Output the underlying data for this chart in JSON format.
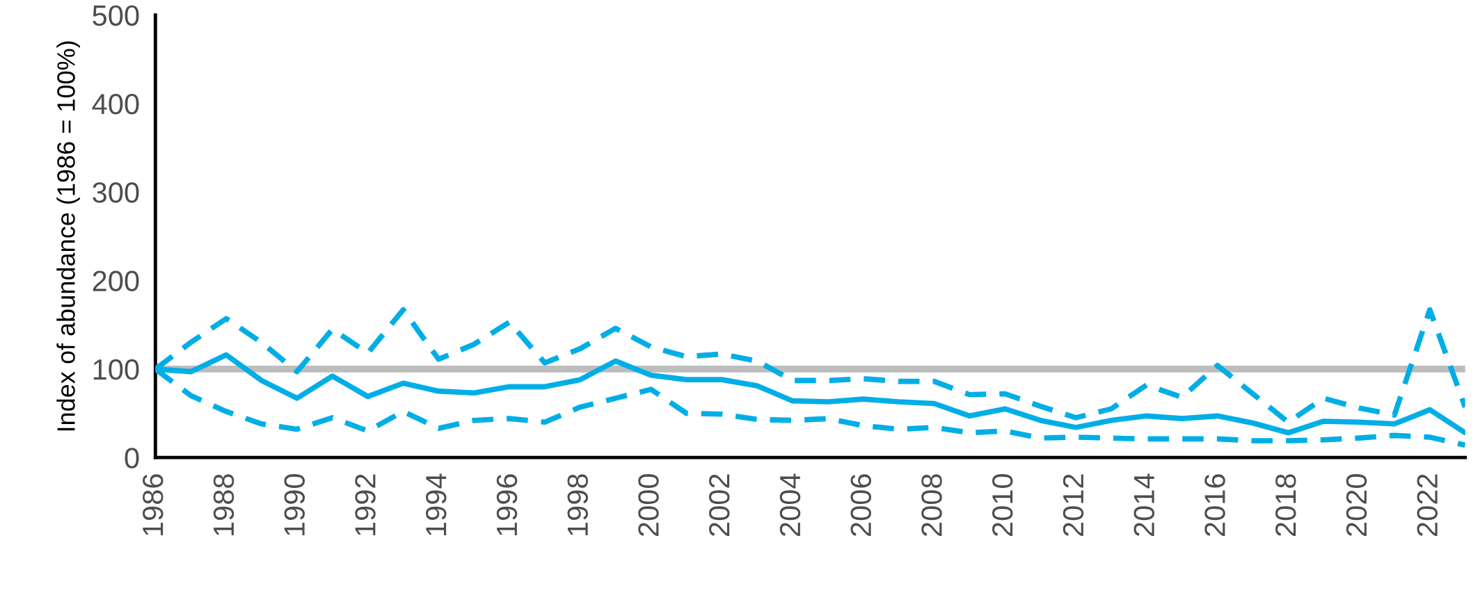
{
  "chart_data": {
    "type": "line",
    "ylabel": "Index of abundance (1986 = 100%)",
    "x": [
      1986,
      1987,
      1988,
      1989,
      1990,
      1991,
      1992,
      1993,
      1994,
      1995,
      1996,
      1997,
      1998,
      1999,
      2000,
      2001,
      2002,
      2003,
      2004,
      2005,
      2006,
      2007,
      2008,
      2009,
      2010,
      2011,
      2012,
      2013,
      2014,
      2015,
      2016,
      2017,
      2018,
      2019,
      2020,
      2021,
      2022,
      2023
    ],
    "series": [
      {
        "color": "#00aee6",
        "line_style": "solid",
        "values": [
          100,
          97,
          116,
          87,
          67,
          92,
          69,
          84,
          75,
          73,
          80,
          80,
          88,
          109,
          93,
          88,
          88,
          81,
          64,
          63,
          66,
          63,
          61,
          47,
          55,
          42,
          34,
          42,
          47,
          44,
          47,
          39,
          28,
          41,
          40,
          38,
          54,
          28
        ]
      },
      {
        "color": "#00aee6",
        "line_style": "dashed",
        "values": [
          100,
          130,
          157,
          130,
          97,
          145,
          118,
          167,
          111,
          128,
          153,
          107,
          123,
          146,
          125,
          114,
          117,
          109,
          87,
          87,
          89,
          86,
          86,
          71,
          72,
          58,
          45,
          55,
          82,
          68,
          104,
          72,
          40,
          67,
          56,
          48,
          167,
          57
        ]
      },
      {
        "color": "#00aee6",
        "line_style": "dashed",
        "values": [
          100,
          70,
          52,
          38,
          32,
          45,
          30,
          52,
          33,
          42,
          44,
          40,
          57,
          67,
          77,
          50,
          49,
          43,
          42,
          44,
          36,
          32,
          34,
          28,
          30,
          22,
          23,
          22,
          21,
          21,
          21,
          19,
          19,
          20,
          22,
          25,
          23,
          14
        ]
      }
    ],
    "xlim": [
      1986,
      2023
    ],
    "xticks": [
      1986,
      1988,
      1990,
      1992,
      1994,
      1996,
      1998,
      2000,
      2002,
      2004,
      2006,
      2008,
      2010,
      2012,
      2014,
      2016,
      2018,
      2020,
      2022
    ],
    "ylim": [
      0,
      500
    ],
    "yticks": [
      0,
      100,
      200,
      300,
      400,
      500
    ],
    "ref_lines": [
      {
        "axis": "y",
        "value": 100,
        "color": "#bdbdbd"
      }
    ],
    "grid": false,
    "legend": false
  }
}
